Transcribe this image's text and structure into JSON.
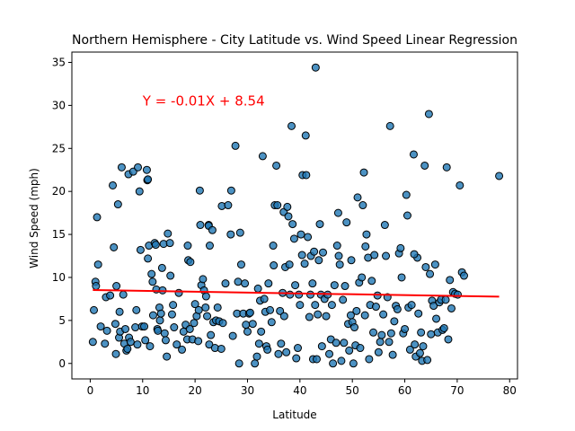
{
  "chart_data": {
    "type": "scatter",
    "title": "Northern Hemisphere - City Latitude vs. Wind Speed Linear Regression",
    "xlabel": "Latitude",
    "ylabel": "Wind Speed (mph)",
    "xlim": [
      -3.5,
      81.5
    ],
    "ylim": [
      -1.8,
      36.2
    ],
    "xticks": [
      "0",
      "10",
      "20",
      "30",
      "40",
      "50",
      "60",
      "70",
      "80"
    ],
    "yticks": [
      "0",
      "5",
      "10",
      "15",
      "20",
      "25",
      "30",
      "35"
    ],
    "grid": false,
    "point_color": "#1f77b4",
    "line_color": "#ff0000",
    "annotation": {
      "text": "Y = -0.01X + 8.54",
      "x": 10,
      "y": 30,
      "color": "#ff0000"
    },
    "regression": {
      "slope": -0.01,
      "intercept": 8.54,
      "x_range": [
        0.5,
        78
      ]
    },
    "points": [
      [
        0.5,
        2.5
      ],
      [
        0.7,
        6.2
      ],
      [
        1.0,
        9.5
      ],
      [
        1.1,
        9.0
      ],
      [
        1.3,
        17.0
      ],
      [
        1.5,
        11.5
      ],
      [
        2.0,
        4.3
      ],
      [
        2.8,
        2.3
      ],
      [
        3.0,
        7.7
      ],
      [
        3.2,
        3.8
      ],
      [
        3.8,
        7.9
      ],
      [
        4.3,
        20.7
      ],
      [
        4.5,
        13.5
      ],
      [
        4.8,
        4.6
      ],
      [
        4.9,
        1.1
      ],
      [
        5.0,
        9.0
      ],
      [
        5.3,
        18.5
      ],
      [
        5.5,
        3.0
      ],
      [
        5.6,
        6.0
      ],
      [
        5.7,
        3.7
      ],
      [
        6.0,
        22.8
      ],
      [
        6.3,
        8.0
      ],
      [
        6.5,
        2.3
      ],
      [
        6.7,
        4.0
      ],
      [
        6.9,
        1.5
      ],
      [
        7.1,
        1.7
      ],
      [
        7.3,
        22.0
      ],
      [
        7.4,
        3.0
      ],
      [
        7.7,
        2.5
      ],
      [
        8.2,
        22.3
      ],
      [
        8.6,
        4.2
      ],
      [
        8.8,
        6.2
      ],
      [
        9.0,
        2.2
      ],
      [
        9.1,
        22.8
      ],
      [
        9.4,
        20.0
      ],
      [
        9.6,
        13.2
      ],
      [
        9.9,
        4.3
      ],
      [
        10.3,
        4.3
      ],
      [
        10.5,
        2.7
      ],
      [
        10.8,
        22.5
      ],
      [
        10.9,
        21.3
      ],
      [
        11.0,
        21.4
      ],
      [
        11.2,
        13.7
      ],
      [
        11.0,
        12.2
      ],
      [
        11.4,
        2.0
      ],
      [
        11.7,
        10.4
      ],
      [
        11.9,
        9.5
      ],
      [
        12.0,
        5.6
      ],
      [
        12.3,
        14.0
      ],
      [
        12.5,
        13.8
      ],
      [
        12.6,
        8.6
      ],
      [
        12.8,
        4.0
      ],
      [
        12.9,
        3.8
      ],
      [
        13.2,
        6.5
      ],
      [
        13.3,
        5.0
      ],
      [
        13.5,
        5.8
      ],
      [
        13.7,
        11.1
      ],
      [
        13.8,
        8.5
      ],
      [
        14.0,
        13.9
      ],
      [
        14.2,
        3.5
      ],
      [
        14.4,
        2.7
      ],
      [
        14.6,
        0.8
      ],
      [
        14.8,
        15.1
      ],
      [
        15.2,
        14.0
      ],
      [
        15.3,
        10.2
      ],
      [
        15.6,
        5.7
      ],
      [
        15.8,
        6.8
      ],
      [
        16.0,
        4.2
      ],
      [
        16.5,
        2.2
      ],
      [
        16.9,
        8.2
      ],
      [
        17.5,
        1.6
      ],
      [
        17.8,
        3.7
      ],
      [
        18.2,
        4.5
      ],
      [
        18.5,
        2.8
      ],
      [
        18.6,
        13.7
      ],
      [
        18.7,
        12.0
      ],
      [
        19.1,
        11.8
      ],
      [
        19.0,
        4.0
      ],
      [
        19.5,
        2.8
      ],
      [
        19.8,
        4.7
      ],
      [
        20.0,
        6.9
      ],
      [
        20.3,
        5.5
      ],
      [
        20.7,
        6.2
      ],
      [
        20.6,
        2.6
      ],
      [
        20.9,
        20.1
      ],
      [
        21.0,
        16.1
      ],
      [
        21.2,
        9.1
      ],
      [
        21.5,
        9.8
      ],
      [
        21.7,
        8.5
      ],
      [
        22.0,
        6.5
      ],
      [
        22.1,
        7.8
      ],
      [
        22.3,
        5.5
      ],
      [
        22.6,
        16.1
      ],
      [
        22.6,
        16.0
      ],
      [
        22.7,
        2.2
      ],
      [
        22.8,
        13.7
      ],
      [
        23.0,
        3.3
      ],
      [
        23.3,
        15.5
      ],
      [
        23.5,
        4.8
      ],
      [
        23.8,
        1.8
      ],
      [
        24.0,
        5.0
      ],
      [
        24.3,
        6.5
      ],
      [
        24.6,
        4.9
      ],
      [
        25.0,
        1.7
      ],
      [
        25.1,
        18.3
      ],
      [
        25.3,
        4.7
      ],
      [
        25.8,
        9.3
      ],
      [
        26.3,
        18.4
      ],
      [
        26.8,
        15.0
      ],
      [
        26.9,
        20.1
      ],
      [
        27.2,
        3.2
      ],
      [
        27.7,
        25.3
      ],
      [
        28.0,
        5.8
      ],
      [
        28.2,
        9.5
      ],
      [
        28.4,
        0.0
      ],
      [
        28.6,
        15.2
      ],
      [
        28.8,
        11.5
      ],
      [
        29.2,
        5.8
      ],
      [
        29.5,
        9.3
      ],
      [
        29.7,
        4.5
      ],
      [
        30.0,
        3.7
      ],
      [
        30.3,
        5.8
      ],
      [
        30.5,
        5.9
      ],
      [
        31.0,
        4.6
      ],
      [
        31.4,
        0.0
      ],
      [
        31.8,
        0.8
      ],
      [
        32.0,
        8.7
      ],
      [
        32.2,
        2.3
      ],
      [
        32.4,
        7.3
      ],
      [
        32.6,
        3.7
      ],
      [
        32.9,
        24.1
      ],
      [
        33.2,
        7.5
      ],
      [
        33.4,
        6.0
      ],
      [
        33.6,
        2.0
      ],
      [
        33.8,
        1.6
      ],
      [
        34.0,
        9.3
      ],
      [
        34.3,
        6.2
      ],
      [
        34.6,
        4.8
      ],
      [
        34.9,
        13.7
      ],
      [
        35.0,
        11.4
      ],
      [
        35.2,
        18.4
      ],
      [
        35.5,
        23.0
      ],
      [
        35.7,
        18.4
      ],
      [
        35.9,
        1.1
      ],
      [
        36.2,
        6.1
      ],
      [
        36.4,
        2.3
      ],
      [
        36.7,
        8.2
      ],
      [
        36.9,
        17.6
      ],
      [
        37.0,
        5.5
      ],
      [
        37.2,
        11.2
      ],
      [
        37.4,
        1.3
      ],
      [
        37.6,
        18.2
      ],
      [
        37.8,
        17.1
      ],
      [
        38.0,
        11.5
      ],
      [
        38.1,
        8.0
      ],
      [
        38.4,
        27.6
      ],
      [
        38.6,
        16.2
      ],
      [
        38.9,
        14.5
      ],
      [
        39.1,
        9.1
      ],
      [
        39.3,
        0.6
      ],
      [
        39.6,
        1.8
      ],
      [
        39.8,
        8.0
      ],
      [
        40.0,
        6.8
      ],
      [
        40.2,
        15.0
      ],
      [
        40.4,
        12.6
      ],
      [
        40.5,
        21.9
      ],
      [
        40.9,
        11.6
      ],
      [
        41.1,
        26.5
      ],
      [
        41.2,
        21.9
      ],
      [
        41.5,
        14.7
      ],
      [
        41.8,
        5.4
      ],
      [
        42.0,
        8.0
      ],
      [
        42.1,
        12.5
      ],
      [
        42.4,
        9.3
      ],
      [
        42.5,
        0.5
      ],
      [
        42.7,
        13.0
      ],
      [
        42.9,
        6.8
      ],
      [
        43.0,
        34.4
      ],
      [
        43.2,
        0.5
      ],
      [
        43.4,
        5.7
      ],
      [
        43.6,
        12.0
      ],
      [
        43.8,
        16.2
      ],
      [
        44.0,
        8.0
      ],
      [
        44.2,
        2.0
      ],
      [
        44.4,
        12.9
      ],
      [
        44.7,
        7.5
      ],
      [
        45.0,
        5.5
      ],
      [
        45.3,
        8.0
      ],
      [
        45.6,
        1.1
      ],
      [
        45.9,
        2.8
      ],
      [
        46.1,
        6.8
      ],
      [
        46.3,
        0.0
      ],
      [
        46.6,
        9.1
      ],
      [
        46.9,
        2.4
      ],
      [
        47.1,
        13.7
      ],
      [
        47.3,
        17.5
      ],
      [
        47.4,
        12.5
      ],
      [
        47.6,
        11.5
      ],
      [
        47.9,
        0.3
      ],
      [
        48.2,
        7.4
      ],
      [
        48.4,
        2.4
      ],
      [
        48.6,
        9.0
      ],
      [
        48.9,
        16.4
      ],
      [
        49.2,
        4.6
      ],
      [
        49.4,
        1.5
      ],
      [
        49.7,
        5.6
      ],
      [
        49.8,
        12.0
      ],
      [
        50.0,
        4.8
      ],
      [
        50.2,
        0.0
      ],
      [
        50.4,
        4.2
      ],
      [
        50.6,
        2.1
      ],
      [
        50.8,
        6.1
      ],
      [
        51.0,
        19.3
      ],
      [
        51.3,
        9.4
      ],
      [
        51.5,
        1.8
      ],
      [
        51.8,
        10.0
      ],
      [
        52.0,
        18.4
      ],
      [
        52.2,
        22.2
      ],
      [
        52.4,
        5.6
      ],
      [
        52.7,
        15.0
      ],
      [
        53.0,
        12.3
      ],
      [
        53.2,
        0.5
      ],
      [
        53.4,
        6.8
      ],
      [
        53.7,
        9.6
      ],
      [
        54.0,
        3.6
      ],
      [
        54.2,
        12.6
      ],
      [
        54.5,
        6.6
      ],
      [
        54.8,
        7.9
      ],
      [
        55.0,
        1.3
      ],
      [
        55.3,
        2.5
      ],
      [
        55.6,
        3.3
      ],
      [
        55.9,
        5.7
      ],
      [
        56.2,
        16.1
      ],
      [
        56.4,
        12.5
      ],
      [
        56.7,
        7.7
      ],
      [
        57.0,
        2.5
      ],
      [
        57.2,
        27.6
      ],
      [
        57.4,
        3.5
      ],
      [
        57.7,
        1.0
      ],
      [
        58.0,
        4.9
      ],
      [
        58.3,
        6.7
      ],
      [
        58.6,
        6.3
      ],
      [
        58.9,
        12.8
      ],
      [
        59.2,
        13.4
      ],
      [
        59.4,
        10.0
      ],
      [
        59.7,
        3.5
      ],
      [
        60.0,
        4.0
      ],
      [
        60.3,
        19.6
      ],
      [
        60.5,
        17.2
      ],
      [
        60.7,
        6.5
      ],
      [
        61.0,
        1.6
      ],
      [
        61.3,
        6.8
      ],
      [
        61.7,
        24.3
      ],
      [
        61.9,
        2.2
      ],
      [
        62.1,
        0.8
      ],
      [
        62.4,
        12.3
      ],
      [
        62.6,
        5.8
      ],
      [
        62.9,
        1.2
      ],
      [
        63.1,
        3.6
      ],
      [
        63.3,
        0.3
      ],
      [
        63.5,
        2.0
      ],
      [
        63.8,
        23.0
      ],
      [
        64.0,
        11.2
      ],
      [
        64.3,
        0.4
      ],
      [
        64.6,
        29.0
      ],
      [
        64.8,
        10.4
      ],
      [
        65.0,
        3.4
      ],
      [
        65.2,
        7.3
      ],
      [
        65.5,
        6.7
      ],
      [
        65.8,
        11.5
      ],
      [
        66.0,
        5.2
      ],
      [
        66.3,
        3.6
      ],
      [
        66.6,
        7.1
      ],
      [
        66.9,
        7.4
      ],
      [
        67.2,
        3.9
      ],
      [
        67.5,
        4.1
      ],
      [
        67.8,
        7.4
      ],
      [
        68.0,
        22.8
      ],
      [
        68.3,
        2.8
      ],
      [
        68.6,
        9.7
      ],
      [
        68.9,
        6.4
      ],
      [
        69.2,
        8.3
      ],
      [
        69.6,
        8.1
      ],
      [
        70.1,
        8.0
      ],
      [
        70.5,
        20.7
      ],
      [
        70.9,
        10.6
      ],
      [
        71.3,
        10.2
      ],
      [
        78.0,
        21.8
      ],
      [
        52.5,
        13.6
      ],
      [
        61.8,
        12.7
      ]
    ]
  }
}
